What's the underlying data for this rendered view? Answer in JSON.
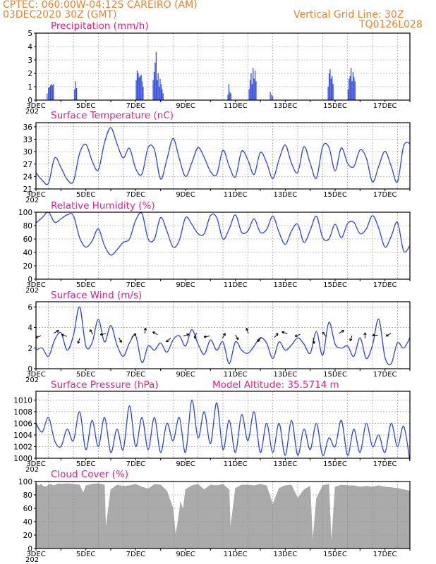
{
  "header": {
    "line1_left": "CPTEC:    060:00W-04:12S   CAREIRO (AM)",
    "line2_left": "03DEC2020 30Z (GMT)",
    "line2_right": "Vertical Grid Line: 30Z",
    "line3_right": "TQ0126L028"
  },
  "colors": {
    "header": "#e8832a",
    "title": "#e0218a",
    "series": "#2a44d8",
    "bars": "#2a44d8",
    "cloud": "#aaaaaa",
    "grid": "#888888"
  },
  "x_axis": {
    "labels": [
      "3DEC",
      "5DEC",
      "7DEC",
      "9DEC",
      "11DEC",
      "13DEC",
      "15DEC",
      "17DEC"
    ],
    "label_days": [
      3,
      5,
      7,
      9,
      11,
      13,
      15,
      17
    ],
    "year_fragment": "202",
    "day_range": [
      3,
      18
    ]
  },
  "chart_data": [
    {
      "type": "bar",
      "title": "Precipitation (mm/h)",
      "ylim": [
        0,
        5
      ],
      "yticks": [
        "0",
        "1",
        "2",
        "3",
        "4",
        "5"
      ],
      "ytick_values": [
        0,
        1,
        2,
        3,
        4,
        5
      ],
      "bar_step_days": 0.0417,
      "x": [
        3.45,
        3.5,
        3.54,
        3.58,
        3.62,
        3.66,
        3.7,
        4.55,
        4.59,
        4.63,
        7.02,
        7.06,
        7.1,
        7.14,
        7.18,
        7.22,
        7.26,
        7.3,
        7.7,
        7.74,
        7.78,
        7.82,
        7.86,
        7.9,
        7.94,
        7.98,
        8.02,
        8.06,
        8.1,
        10.7,
        10.74,
        10.78,
        10.82,
        11.55,
        11.59,
        11.63,
        11.67,
        11.71,
        11.75,
        11.79,
        11.83,
        12.4,
        12.45,
        12.5,
        14.72,
        14.76,
        14.8,
        14.84,
        14.88,
        14.92,
        15.52,
        15.56,
        15.6,
        15.64,
        15.68,
        15.72,
        15.76,
        15.8
      ],
      "values": [
        0.5,
        0.9,
        1.0,
        1.1,
        1.2,
        1.1,
        1.2,
        0.8,
        1.4,
        0.9,
        1.5,
        2.2,
        2.0,
        1.7,
        1.8,
        1.9,
        1.4,
        1.0,
        1.5,
        2.1,
        2.8,
        3.6,
        1.5,
        2.0,
        1.0,
        1.6,
        1.2,
        0.8,
        0.5,
        0.4,
        1.2,
        0.6,
        0.5,
        0.8,
        1.5,
        2.0,
        1.2,
        2.4,
        1.6,
        2.2,
        1.4,
        0.6,
        0.4,
        0.3,
        1.0,
        2.0,
        2.3,
        1.6,
        1.8,
        1.2,
        0.8,
        1.6,
        1.8,
        2.4,
        1.4,
        2.1,
        1.7,
        1.4
      ]
    },
    {
      "type": "line",
      "title": "Surface Temperature (nC)",
      "ylim": [
        21,
        37
      ],
      "yticks": [
        "21",
        "24",
        "27",
        "30",
        "33",
        "36"
      ],
      "ytick_values": [
        21,
        24,
        27,
        30,
        33,
        36
      ],
      "x": [
        3.0,
        3.25,
        3.5,
        3.75,
        4.0,
        4.25,
        4.5,
        4.75,
        5.0,
        5.25,
        5.5,
        5.75,
        6.0,
        6.25,
        6.5,
        6.75,
        7.0,
        7.25,
        7.5,
        7.75,
        8.0,
        8.25,
        8.5,
        8.75,
        9.0,
        9.25,
        9.5,
        9.75,
        10.0,
        10.25,
        10.5,
        10.75,
        11.0,
        11.25,
        11.5,
        11.75,
        12.0,
        12.25,
        12.5,
        12.75,
        13.0,
        13.25,
        13.5,
        13.75,
        14.0,
        14.25,
        14.5,
        14.75,
        15.0,
        15.25,
        15.5,
        15.75,
        16.0,
        16.25,
        16.5,
        16.75,
        17.0,
        17.25,
        17.5,
        17.75,
        18.0
      ],
      "values": [
        24.9,
        23.1,
        22.4,
        28.5,
        26.2,
        23.3,
        22.8,
        29.6,
        31.8,
        27.8,
        25.6,
        32.2,
        35.8,
        31.9,
        28.5,
        30.8,
        25.9,
        24.6,
        31.0,
        30.5,
        23.4,
        28.1,
        33.2,
        28.3,
        24.0,
        27.3,
        31.0,
        28.6,
        25.2,
        24.5,
        30.3,
        26.5,
        23.9,
        30.1,
        28.0,
        24.5,
        29.8,
        27.4,
        23.5,
        28.1,
        31.6,
        27.2,
        25.0,
        31.2,
        27.2,
        23.6,
        31.2,
        31.1,
        25.4,
        30.9,
        27.2,
        26.4,
        30.4,
        28.5,
        22.7,
        26.5,
        30.1,
        26.5,
        22.7,
        31.4,
        32.0
      ]
    },
    {
      "type": "line",
      "title": "Relative Humidity (%)",
      "ylim": [
        0,
        100
      ],
      "yticks": [
        "0",
        "20",
        "40",
        "60",
        "80",
        "100"
      ],
      "ytick_values": [
        0,
        20,
        40,
        60,
        80,
        100
      ],
      "x": [
        3.0,
        3.25,
        3.5,
        3.75,
        4.0,
        4.25,
        4.5,
        4.75,
        5.0,
        5.25,
        5.5,
        5.75,
        6.0,
        6.25,
        6.5,
        6.75,
        7.0,
        7.25,
        7.5,
        7.75,
        8.0,
        8.25,
        8.5,
        8.75,
        9.0,
        9.25,
        9.5,
        9.75,
        10.0,
        10.25,
        10.5,
        10.75,
        11.0,
        11.25,
        11.5,
        11.75,
        12.0,
        12.25,
        12.5,
        12.75,
        13.0,
        13.25,
        13.5,
        13.75,
        14.0,
        14.25,
        14.5,
        14.75,
        15.0,
        15.25,
        15.5,
        15.75,
        16.0,
        16.25,
        16.5,
        16.75,
        17.0,
        17.25,
        17.5,
        17.75,
        18.0
      ],
      "values": [
        84,
        92,
        100,
        85,
        90,
        96,
        95,
        62,
        48,
        57,
        75,
        50,
        36,
        44,
        55,
        60,
        88,
        98,
        60,
        60,
        92,
        72,
        48,
        58,
        92,
        82,
        68,
        68,
        95,
        92,
        60,
        75,
        96,
        70,
        72,
        90,
        70,
        74,
        94,
        70,
        52,
        72,
        82,
        55,
        73,
        94,
        62,
        60,
        82,
        62,
        83,
        85,
        68,
        75,
        95,
        76,
        48,
        64,
        85,
        42,
        50
      ]
    },
    {
      "type": "line",
      "title": "Surface Wind (m/s)",
      "ylim": [
        0,
        6.5
      ],
      "yticks": [
        "0",
        "2",
        "4",
        "6"
      ],
      "ytick_values": [
        0,
        2,
        4,
        6
      ],
      "x": [
        3.0,
        3.25,
        3.5,
        3.75,
        4.0,
        4.25,
        4.5,
        4.75,
        5.0,
        5.25,
        5.5,
        5.75,
        6.0,
        6.25,
        6.5,
        6.75,
        7.0,
        7.25,
        7.5,
        7.75,
        8.0,
        8.25,
        8.5,
        8.75,
        9.0,
        9.25,
        9.5,
        9.75,
        10.0,
        10.25,
        10.5,
        10.75,
        11.0,
        11.25,
        11.5,
        11.75,
        12.0,
        12.25,
        12.5,
        12.75,
        13.0,
        13.25,
        13.5,
        13.75,
        14.0,
        14.25,
        14.5,
        14.75,
        15.0,
        15.25,
        15.5,
        15.75,
        16.0,
        16.25,
        16.5,
        16.75,
        17.0,
        17.25,
        17.5,
        17.75,
        18.0
      ],
      "values": [
        1.8,
        2.0,
        1.2,
        2.8,
        3.5,
        1.8,
        3.2,
        6.0,
        2.2,
        2.5,
        4.8,
        2.6,
        4.2,
        2.3,
        1.2,
        2.5,
        3.2,
        0.6,
        2.2,
        1.8,
        2.5,
        1.6,
        2.8,
        3.2,
        2.2,
        3.8,
        2.4,
        1.4,
        2.8,
        1.8,
        2.6,
        0.5,
        2.6,
        1.8,
        1.5,
        2.2,
        3.0,
        2.5,
        1.0,
        2.6,
        1.8,
        2.3,
        3.0,
        2.4,
        1.5,
        3.6,
        1.3,
        4.5,
        2.4,
        2.0,
        2.2,
        1.2,
        3.0,
        1.0,
        2.3,
        4.8,
        1.1,
        0.5,
        2.5,
        2.0,
        3.0
      ]
    },
    {
      "type": "line",
      "title": "Surface Pressure (hPa)",
      "annotation": "Model Altitude: 35.5714  m",
      "ylim": [
        1000,
        1011.5
      ],
      "yticks": [
        "1000",
        "1002",
        "1004",
        "1006",
        "1008",
        "1010"
      ],
      "ytick_values": [
        1000,
        1002,
        1004,
        1006,
        1008,
        1010
      ],
      "x": [
        3.0,
        3.25,
        3.5,
        3.75,
        4.0,
        4.25,
        4.5,
        4.75,
        5.0,
        5.25,
        5.5,
        5.75,
        6.0,
        6.25,
        6.5,
        6.75,
        7.0,
        7.25,
        7.5,
        7.75,
        8.0,
        8.25,
        8.5,
        8.75,
        9.0,
        9.25,
        9.5,
        9.75,
        10.0,
        10.25,
        10.5,
        10.75,
        11.0,
        11.25,
        11.5,
        11.75,
        12.0,
        12.25,
        12.5,
        12.75,
        13.0,
        13.25,
        13.5,
        13.75,
        14.0,
        14.25,
        14.5,
        14.75,
        15.0,
        15.25,
        15.5,
        15.75,
        16.0,
        16.25,
        16.5,
        16.75,
        17.0,
        17.25,
        17.5,
        17.75,
        18.0
      ],
      "values": [
        1006,
        1004.5,
        1007,
        1003,
        1002,
        1005,
        1003,
        1008,
        1001.5,
        1006.5,
        1002,
        1007,
        1001,
        1005,
        1001.5,
        1009,
        1002,
        1007,
        1001.5,
        1007,
        1001,
        1006,
        1003,
        1007,
        1001,
        1010,
        1003.5,
        1008,
        1002.5,
        1009.5,
        1001.5,
        1006.5,
        1001,
        1007.5,
        1003,
        1008,
        1001,
        1006,
        1001,
        1006,
        1000.5,
        1006.5,
        1000.5,
        1005,
        1001.5,
        1006,
        1000.5,
        1003.5,
        1002,
        1006.5,
        1000.5,
        1005,
        1001,
        1006,
        1002,
        1004,
        1001,
        1006,
        1002,
        1005.5,
        999.5
      ]
    },
    {
      "type": "area",
      "title": "Cloud Cover (%)",
      "ylim": [
        0,
        100
      ],
      "yticks": [
        "0",
        "20",
        "40",
        "60",
        "80",
        "100"
      ],
      "ytick_values": [
        0,
        20,
        40,
        60,
        80,
        100
      ],
      "x": [
        3.0,
        3.1,
        3.2,
        3.3,
        3.4,
        3.5,
        3.6,
        3.7,
        3.8,
        3.9,
        4.0,
        4.25,
        4.5,
        4.75,
        4.9,
        5.0,
        5.25,
        5.5,
        5.75,
        5.8,
        6.0,
        6.25,
        6.5,
        6.75,
        7.0,
        7.25,
        7.5,
        7.75,
        8.0,
        8.25,
        8.5,
        8.6,
        8.7,
        8.8,
        8.9,
        9.0,
        9.25,
        9.5,
        9.75,
        10.0,
        10.25,
        10.5,
        10.75,
        10.8,
        11.0,
        11.25,
        11.5,
        11.75,
        12.0,
        12.25,
        12.5,
        12.75,
        13.0,
        13.25,
        13.5,
        13.75,
        14.0,
        14.1,
        14.25,
        14.5,
        14.75,
        14.85,
        15.0,
        15.25,
        15.5,
        15.75,
        16.0,
        16.25,
        16.5,
        16.75,
        17.0,
        17.25,
        17.5,
        17.75,
        18.0
      ],
      "values": [
        97,
        94,
        96,
        93,
        92,
        95,
        96,
        94,
        95,
        97,
        96,
        97,
        96,
        95,
        83,
        94,
        96,
        97,
        95,
        30,
        88,
        95,
        93,
        94,
        96,
        92,
        89,
        96,
        95,
        86,
        60,
        20,
        42,
        70,
        58,
        88,
        94,
        96,
        88,
        95,
        94,
        96,
        88,
        30,
        90,
        95,
        95,
        94,
        96,
        94,
        66,
        90,
        94,
        95,
        75,
        88,
        93,
        10,
        75,
        94,
        96,
        8,
        92,
        95,
        94,
        94,
        92,
        93,
        92,
        94,
        92,
        91,
        90,
        88,
        86
      ]
    }
  ]
}
